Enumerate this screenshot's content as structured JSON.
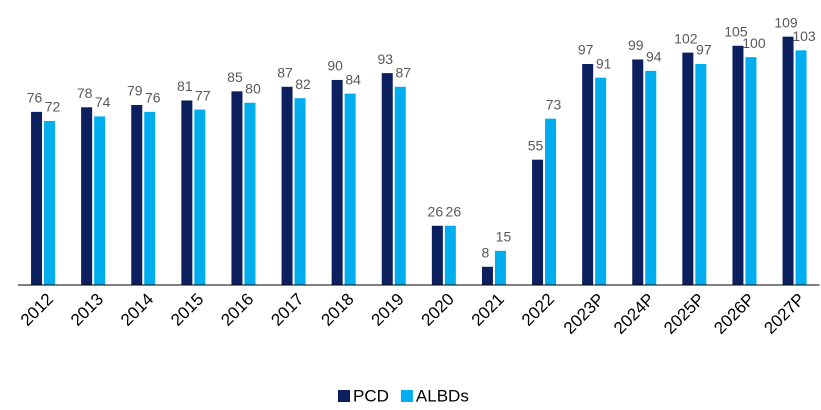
{
  "chart_data": {
    "type": "bar",
    "categories": [
      "2012",
      "2013",
      "2014",
      "2015",
      "2016",
      "2017",
      "2018",
      "2019",
      "2020",
      "2021",
      "2022",
      "2023P",
      "2024P",
      "2025P",
      "2026P",
      "2027P"
    ],
    "series": [
      {
        "name": "PCD",
        "color": "#0c1f5e",
        "values": [
          76,
          78,
          79,
          81,
          85,
          87,
          90,
          93,
          26,
          8,
          55,
          97,
          99,
          102,
          105,
          109
        ]
      },
      {
        "name": "ALBDs",
        "color": "#00aeef",
        "values": [
          72,
          74,
          76,
          77,
          80,
          82,
          84,
          87,
          26,
          15,
          73,
          91,
          94,
          97,
          100,
          103
        ]
      }
    ],
    "ylim": [
      0,
      115
    ],
    "legend": "bottom"
  }
}
